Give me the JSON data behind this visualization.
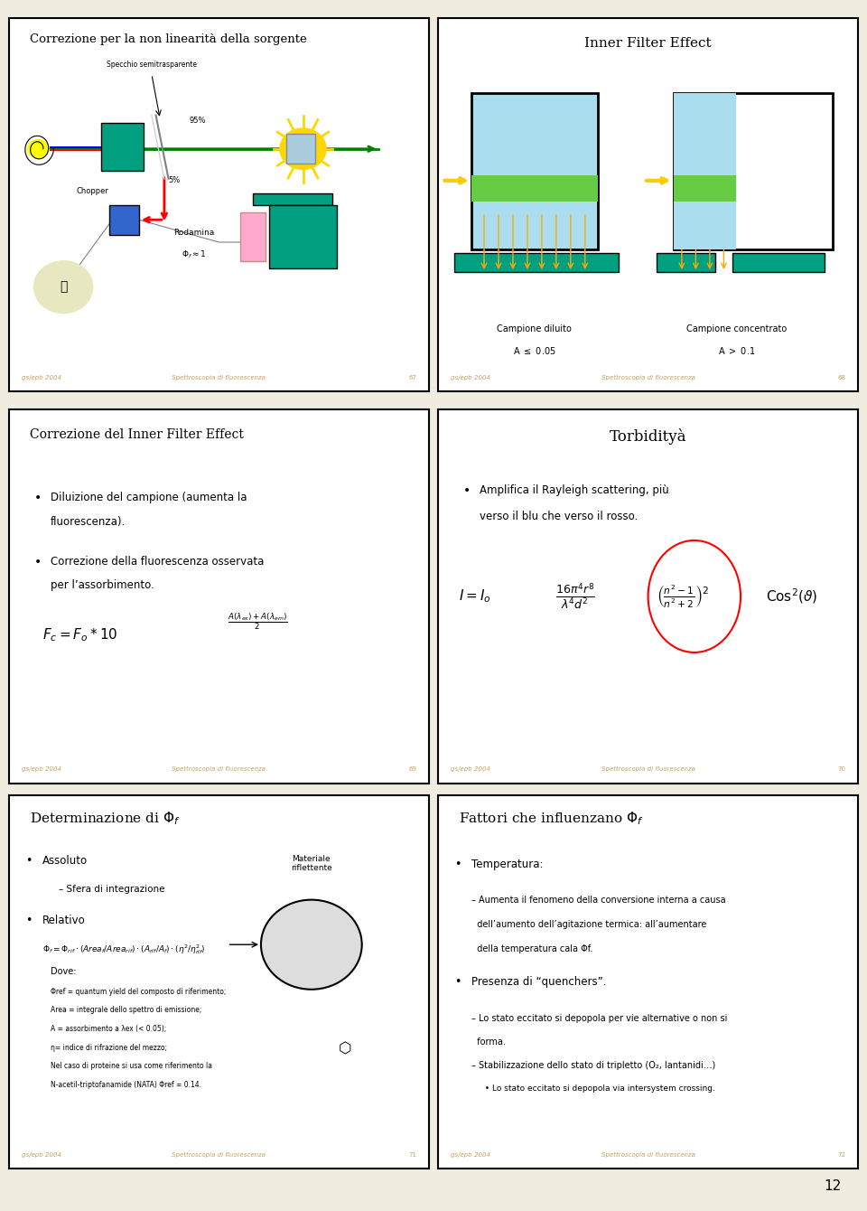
{
  "bg_color": "#f0ede0",
  "slide_bg": "#ffffff",
  "border_color": "#000000",
  "title_color": "#000000",
  "text_color": "#000000",
  "footer_color": "#c8a060",
  "teal_color": "#00a080",
  "yellow_color": "#ffd700",
  "slide1_title": "Correzione per la non linearità della sorgente",
  "slide2_title": "Inner Filter Effect",
  "slide3_title": "Correzione del Inner Filter Effect",
  "slide4_title": "Torbidityà",
  "slide5_title": "Determinazione di Φₑ",
  "slide6_title": "Fattori che influenzano Φₑ",
  "footer_left": "gs/epb 2004",
  "footer_center": "Spettroscopia di fluorescenza",
  "footer_numbers": [
    "67",
    "68",
    "69",
    "70",
    "71",
    "72"
  ],
  "page_number": "12",
  "slide3_bullets": [
    "Diluizione del campione (aumenta la fluorescenza).",
    "Correzione della fluorescenza osservata per l’assorbimento."
  ],
  "slide3_formula": "F_c = F_o * 10^{(A(\\lambda_{ex}) + A(\\lambda_{em}))/2}",
  "slide4_bullet": "Amplifica il Rayleigh scattering, più verso il blu che verso il rosso.",
  "slide5_title_sym": "Determinazione di Φf",
  "slide6_title_sym": "Fattori che influenzano Φf",
  "slide5_bullets": [
    "Assoluto",
    "Sfera di integrazione",
    "Relativo",
    "Φf = Φref · (Areaf/Arearef) · (Aref/Af) · (η2/η²ref)"
  ],
  "slide5_subbullets": [
    "Φref = quantum yield del composto di riferimento;",
    "Area = integrale dello spettro di emissione;",
    "A = assorbimento a λex (< 0.05);",
    "η= indice di rifrazione del mezzo;",
    "Nel caso di proteine si usa come riferimento la",
    "N-acetil-triptofanamide (NATA) Φref = 0.14."
  ],
  "slide6_bullets": [
    "Temperatura:",
    "Presenza di “quenchers”."
  ],
  "slide6_sub1": [
    "Aumenta il fenomeno della conversione interna a causa dell’aumento dell’agitazione termica: all’aumentare della temperatura cala Φf."
  ],
  "slide6_sub2": [
    "Lo stato eccitato si depopola per vie alternative o non si forma.",
    "Stabilizzazione dello stato di tripletto (O₂, lantanidi…)"
  ],
  "slide6_sub3": [
    "Lo stato eccitato si depopola via intersystem crossing."
  ]
}
